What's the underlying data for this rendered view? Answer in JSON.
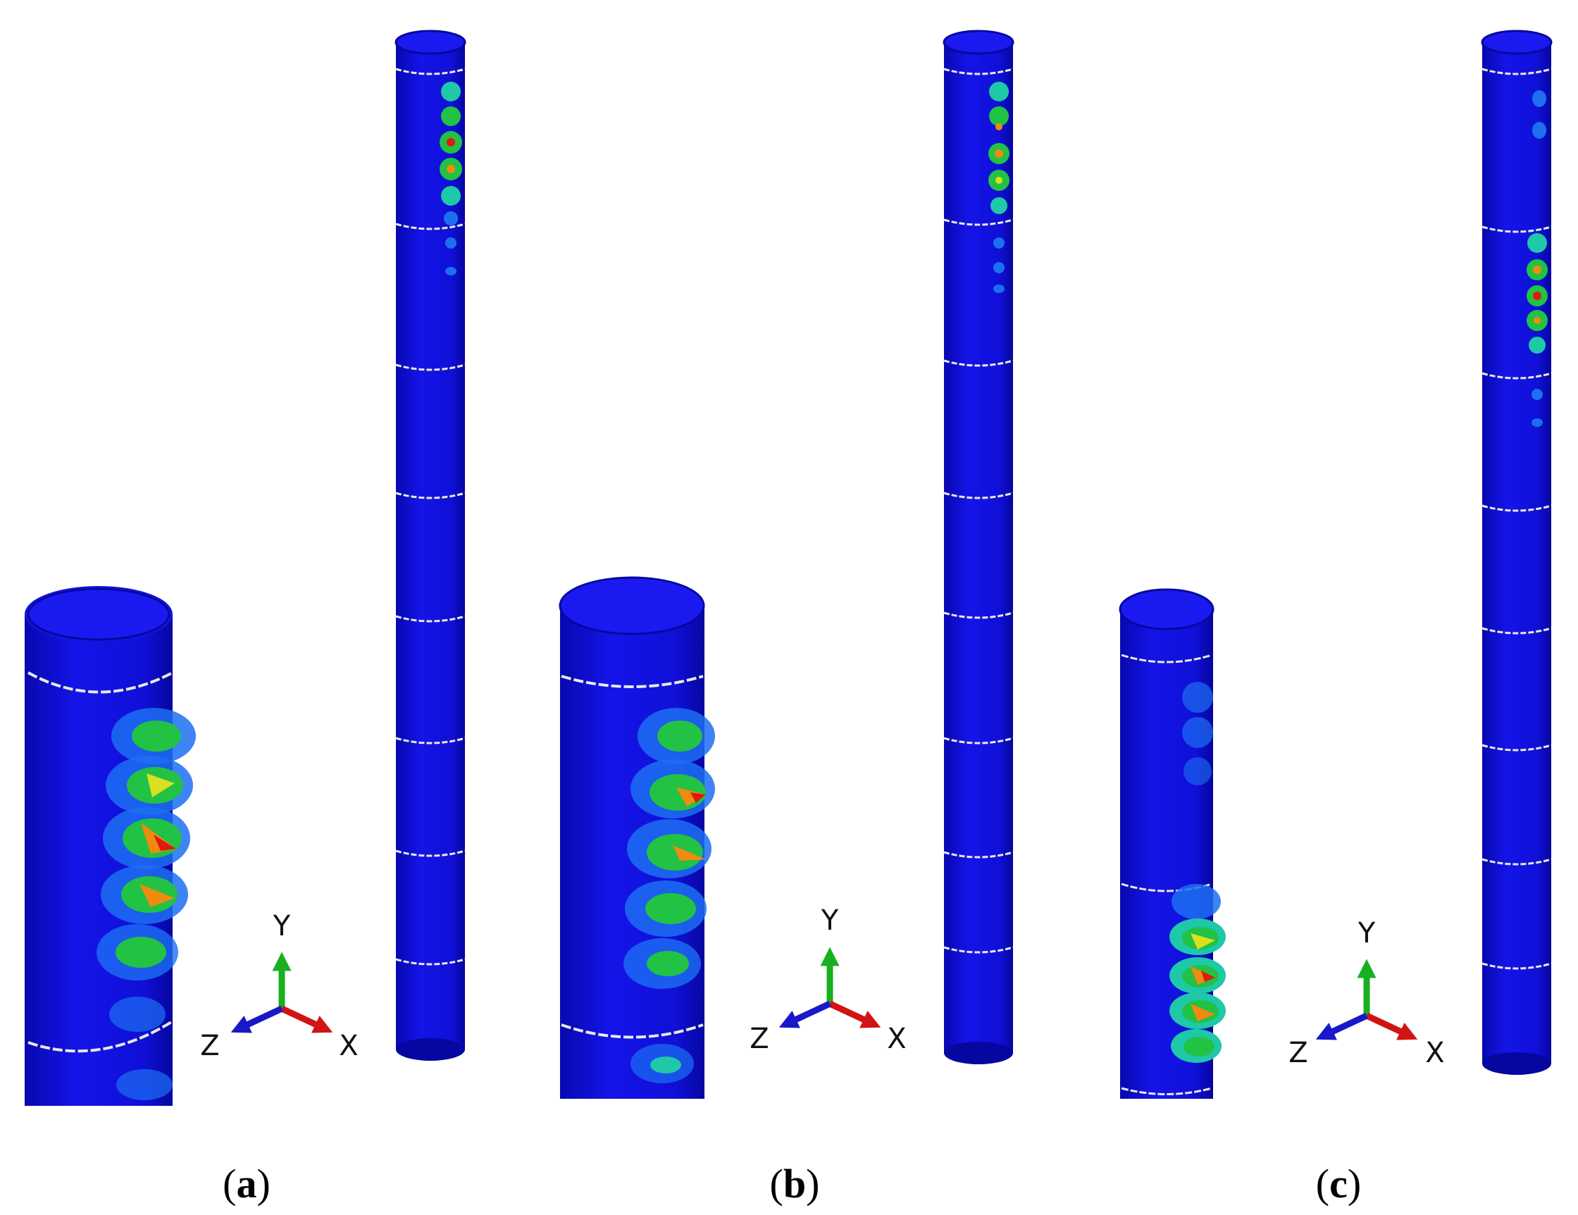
{
  "colors": {
    "shell": "#1010e0",
    "shell_dark": "#0a0aa8",
    "shell_light": "#2a2aff",
    "ring": "#e8e8e8",
    "contour_low": "#1d6ff2",
    "contour_mid": "#1ec8a8",
    "contour_green": "#22c244",
    "contour_yellow": "#d8e020",
    "contour_orange": "#f08a10",
    "contour_red": "#e01a10",
    "axis_x": "#d01414",
    "axis_y": "#18b020",
    "axis_z": "#1818c8"
  },
  "axes_labels": {
    "x": "X",
    "y": "Y",
    "z": "Z"
  },
  "panels": [
    {
      "label": "a"
    },
    {
      "label": "b"
    },
    {
      "label": "c"
    }
  ]
}
